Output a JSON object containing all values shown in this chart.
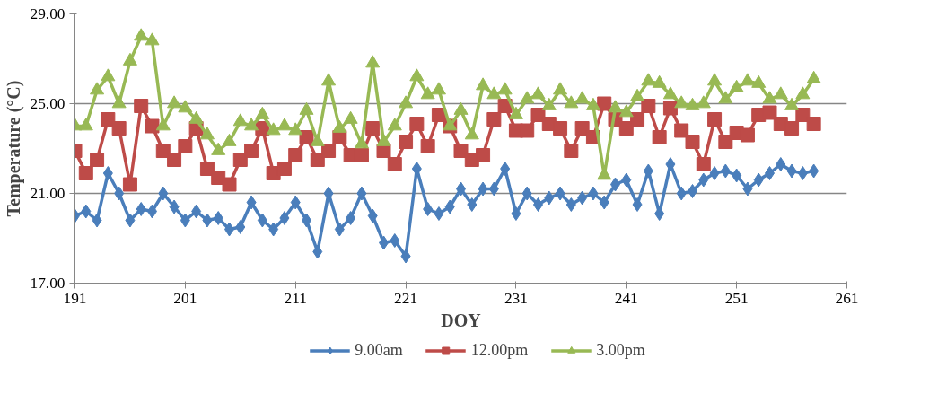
{
  "chart_data": {
    "type": "line",
    "xlabel": "DOY",
    "ylabel": "Temperature (°C)",
    "x": [
      191,
      192,
      193,
      194,
      195,
      196,
      197,
      198,
      199,
      200,
      201,
      202,
      203,
      204,
      205,
      206,
      207,
      208,
      209,
      210,
      211,
      212,
      213,
      214,
      215,
      216,
      217,
      218,
      219,
      220,
      221,
      222,
      223,
      224,
      225,
      226,
      227,
      228,
      229,
      230,
      231,
      232,
      233,
      234,
      235,
      236,
      237,
      238,
      239,
      240,
      241,
      242,
      243,
      244,
      245,
      246,
      247,
      248,
      249,
      250,
      251,
      252,
      253,
      254,
      255,
      256,
      257,
      258
    ],
    "series": [
      {
        "name": "9.00am",
        "color": "#4a7ebb",
        "marker": "diamond",
        "values": [
          20.0,
          20.2,
          19.8,
          21.9,
          21.0,
          19.8,
          20.3,
          20.2,
          21.0,
          20.4,
          19.8,
          20.2,
          19.8,
          19.9,
          19.4,
          19.5,
          20.6,
          19.8,
          19.4,
          19.9,
          20.6,
          19.8,
          18.4,
          21.0,
          19.4,
          19.9,
          21.0,
          20.0,
          18.8,
          18.9,
          18.2,
          22.1,
          20.3,
          20.1,
          20.4,
          21.2,
          20.5,
          21.2,
          21.2,
          22.1,
          20.1,
          21.0,
          20.5,
          20.8,
          21.0,
          20.5,
          20.8,
          21.0,
          20.6,
          21.4,
          21.6,
          20.5,
          22.0,
          20.1,
          22.3,
          21.0,
          21.1,
          21.6,
          21.9,
          22.0,
          21.8,
          21.2,
          21.6,
          21.9,
          22.3,
          22.0,
          21.9,
          22.0
        ]
      },
      {
        "name": "12.00pm",
        "color": "#be4b48",
        "marker": "square",
        "values": [
          22.9,
          21.9,
          22.5,
          24.3,
          23.9,
          21.4,
          24.9,
          24.0,
          22.9,
          22.5,
          23.1,
          23.9,
          22.1,
          21.7,
          21.4,
          22.5,
          22.9,
          23.9,
          21.9,
          22.1,
          22.7,
          23.5,
          22.5,
          22.9,
          23.5,
          22.7,
          22.7,
          23.9,
          22.9,
          22.3,
          23.3,
          24.1,
          23.1,
          24.5,
          24.0,
          22.9,
          22.5,
          22.7,
          24.3,
          24.9,
          23.8,
          23.8,
          24.5,
          24.1,
          23.9,
          22.9,
          23.9,
          23.5,
          25.0,
          24.3,
          23.9,
          24.3,
          24.9,
          23.5,
          24.8,
          23.8,
          23.3,
          22.3,
          24.3,
          23.3,
          23.7,
          23.6,
          24.5,
          24.6,
          24.1,
          23.9,
          24.5,
          24.1
        ]
      },
      {
        "name": "3.00pm",
        "color": "#98b954",
        "marker": "triangle",
        "values": [
          24.0,
          24.0,
          25.6,
          26.2,
          25.0,
          26.9,
          28.0,
          27.8,
          24.0,
          25.0,
          24.8,
          24.3,
          23.6,
          22.9,
          23.3,
          24.2,
          24.0,
          24.5,
          23.8,
          24.0,
          23.8,
          24.7,
          23.3,
          26.0,
          23.9,
          24.3,
          23.2,
          26.8,
          23.3,
          24.0,
          25.0,
          26.2,
          25.4,
          25.6,
          24.0,
          24.7,
          23.6,
          25.8,
          25.4,
          25.6,
          24.5,
          25.2,
          25.4,
          24.9,
          25.6,
          25.0,
          25.2,
          24.9,
          21.8,
          24.8,
          24.6,
          25.3,
          26.0,
          25.9,
          25.4,
          25.0,
          24.9,
          25.0,
          26.0,
          25.2,
          25.7,
          26.0,
          25.9,
          25.2,
          25.4,
          24.9,
          25.4,
          26.1
        ]
      }
    ],
    "xlim": [
      191,
      261
    ],
    "xticks": [
      191,
      201,
      211,
      221,
      231,
      241,
      251,
      261
    ],
    "ylim": [
      17,
      29
    ],
    "yticks": [
      {
        "value": 17,
        "label": "17.00"
      },
      {
        "value": 21,
        "label": "21.00"
      },
      {
        "value": 25,
        "label": "25.00"
      },
      {
        "value": 29,
        "label": "29.00"
      }
    ],
    "grid": "y",
    "legend": "bottom",
    "line_style": "solid"
  }
}
